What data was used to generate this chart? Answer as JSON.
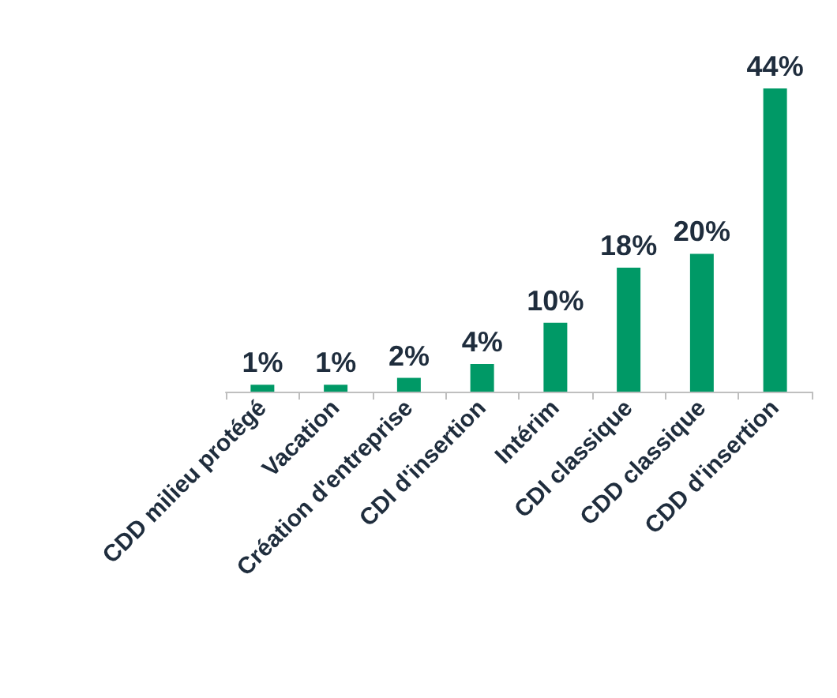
{
  "chart_data": {
    "type": "bar",
    "categories": [
      "CDD milieu protégé",
      "Vacation",
      "Création d'entreprise",
      "CDI d'insertion",
      "Intérim",
      "CDI classique",
      "CDD classique",
      "CDD d'insertion"
    ],
    "values": [
      1,
      1,
      2,
      4,
      10,
      18,
      20,
      44
    ],
    "value_labels": [
      "1%",
      "1%",
      "2%",
      "4%",
      "10%",
      "18%",
      "20%",
      "44%"
    ],
    "color": "#009966"
  }
}
